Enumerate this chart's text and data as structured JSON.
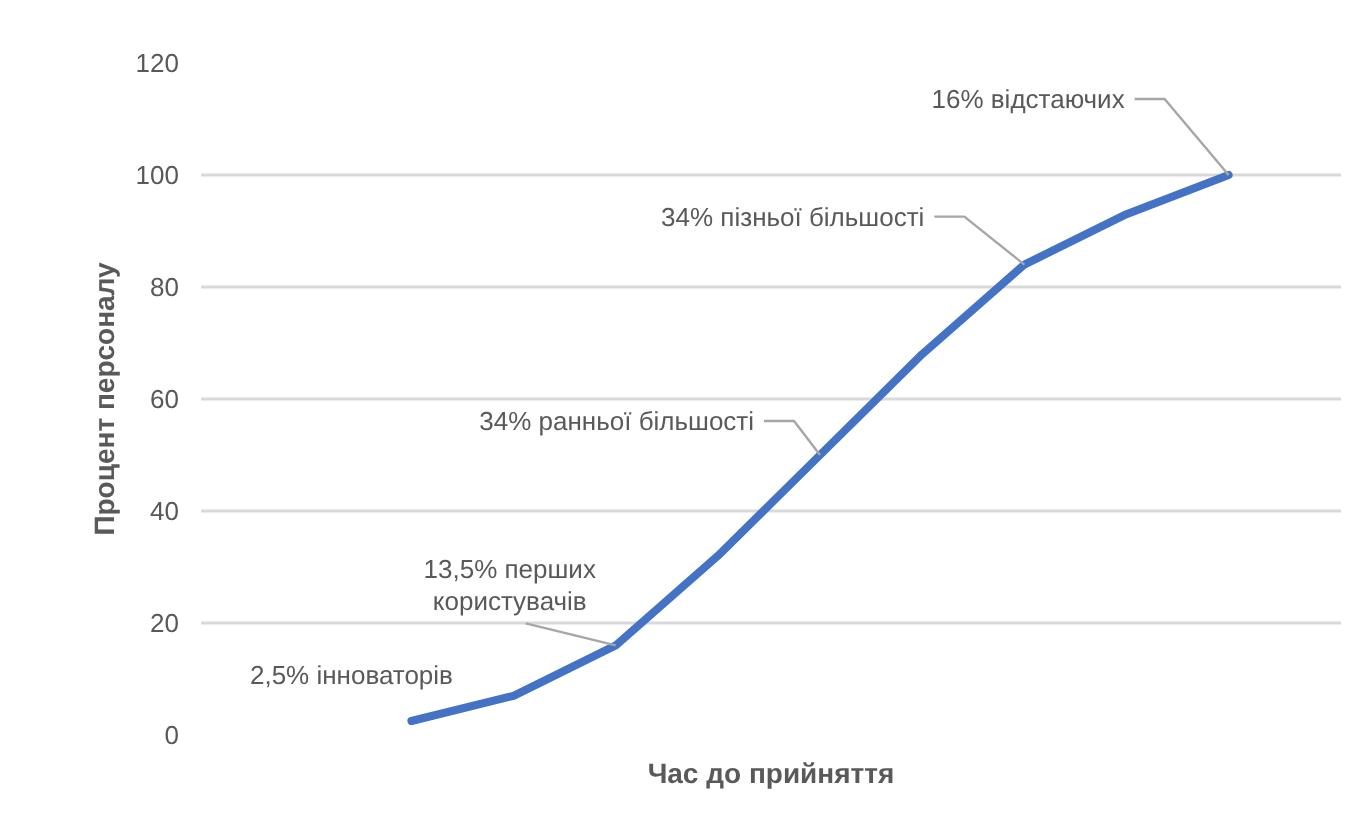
{
  "chart_data": {
    "type": "line",
    "xlabel": "Час до прийняття",
    "ylabel": "Процент персоналу",
    "categories": [
      null,
      null,
      null,
      null,
      null,
      null,
      null,
      null,
      null
    ],
    "values": [
      2.5,
      7,
      16,
      32,
      50,
      68,
      84,
      93,
      100
    ],
    "color": "#4472c4",
    "ylim": [
      0,
      120
    ],
    "yticks": [
      0,
      20,
      40,
      60,
      80,
      100,
      120
    ],
    "grid": "y",
    "tick_labels": "y",
    "annotations": [
      "2,5% інноваторів",
      "13,5% перших\nкористувачів",
      "34% ранньої більшості",
      "34% пізньої більшості",
      "16% відстаючих"
    ]
  }
}
